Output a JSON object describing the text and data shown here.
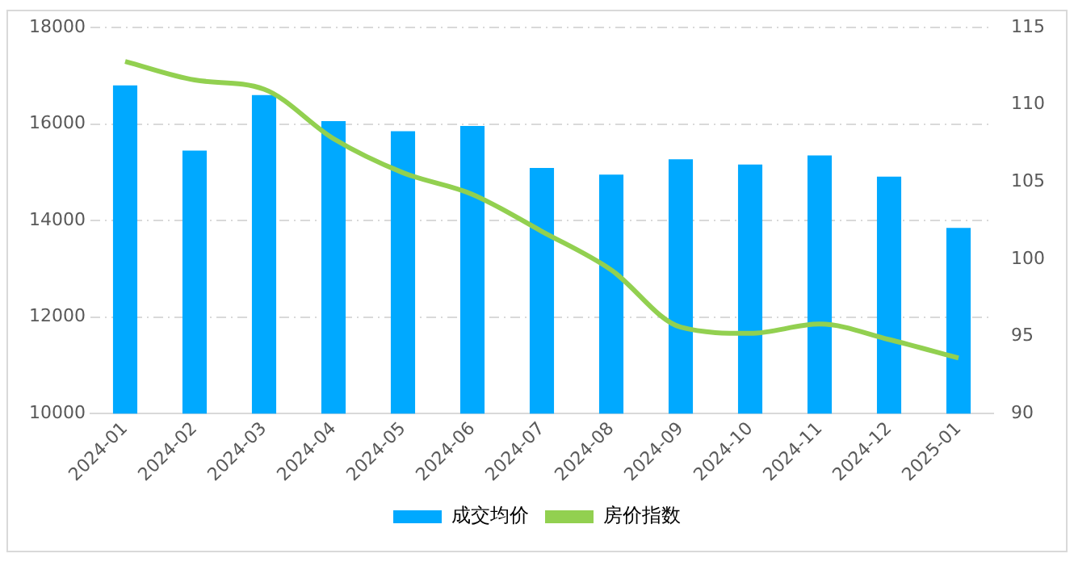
{
  "chart_data": {
    "type": "bar",
    "categories": [
      "2024-01",
      "2024-02",
      "2024-03",
      "2024-04",
      "2024-05",
      "2024-06",
      "2024-07",
      "2024-08",
      "2024-09",
      "2024-10",
      "2024-11",
      "2024-12",
      "2025-01"
    ],
    "series": [
      {
        "name": "成交均价",
        "color": "#00a9ff",
        "values": [
          16800,
          15450,
          16600,
          16060,
          15850,
          15960,
          15090,
          14950,
          15270,
          15160,
          15350,
          14910,
          13850
        ]
      },
      {
        "name": "房价指数",
        "type": "line",
        "axis": "y2",
        "color": "#92d050",
        "marker": "none",
        "values": [
          112.8,
          111.6,
          111.0,
          107.8,
          105.6,
          104.2,
          101.8,
          99.3,
          95.6,
          95.2,
          95.8,
          94.8,
          93.6
        ]
      }
    ],
    "ylim": [
      10000,
      18000
    ],
    "yticks": [
      10000,
      12000,
      14000,
      16000,
      18000
    ],
    "y2lim": [
      90,
      115
    ],
    "y2ticks": [
      90,
      95,
      100,
      105,
      110,
      115
    ],
    "grid": "y",
    "legend": "bottom"
  }
}
